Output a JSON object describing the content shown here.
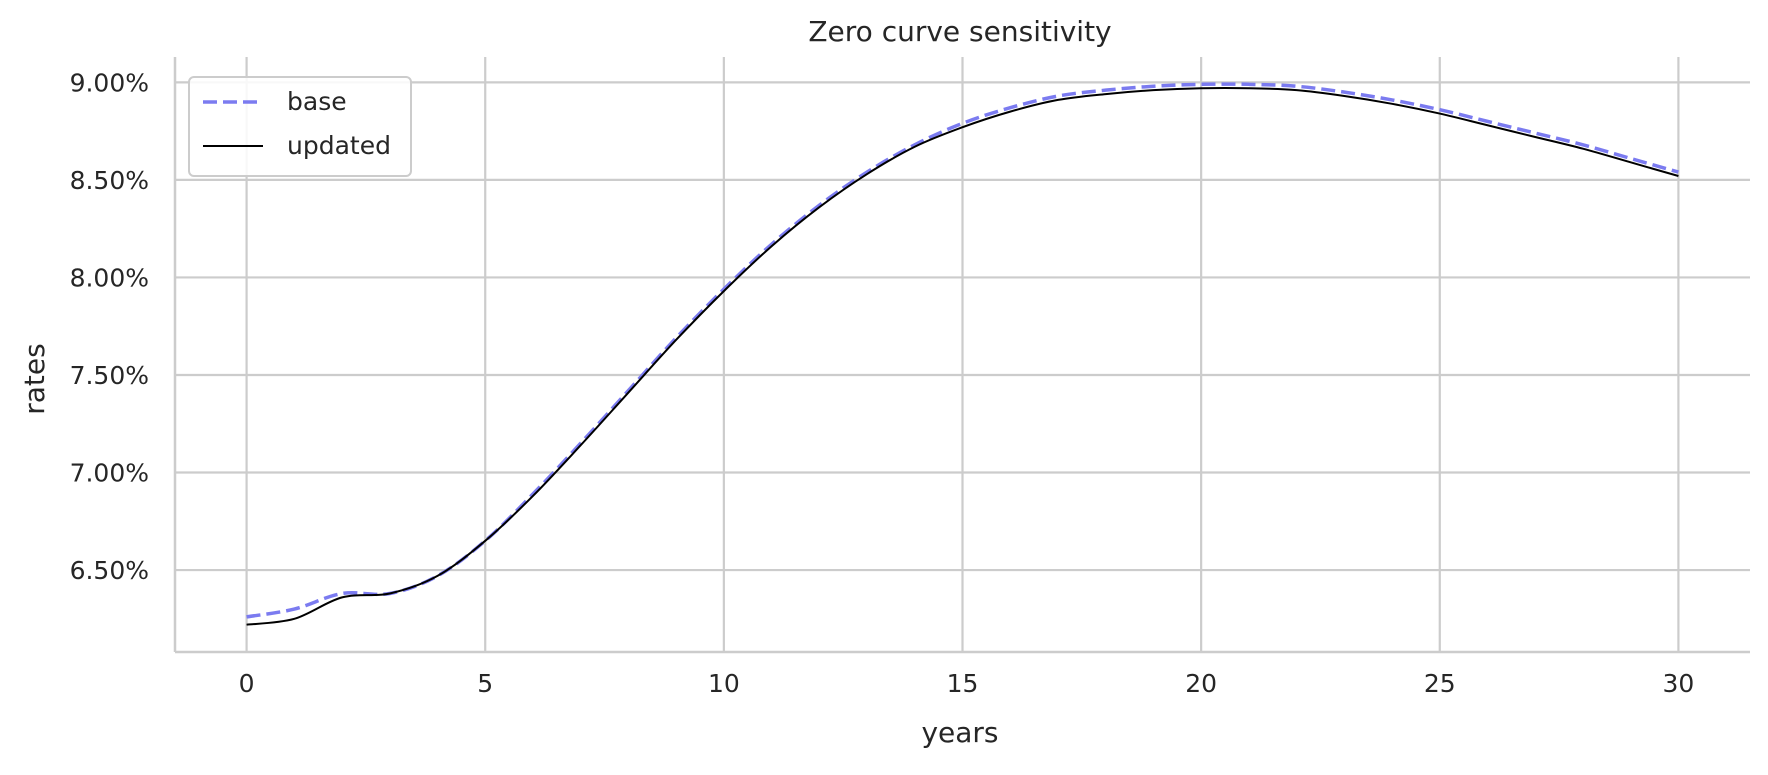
{
  "chart_data": {
    "type": "line",
    "title": "Zero curve sensitivity",
    "xlabel": "years",
    "ylabel": "rates",
    "xlim": [
      -1.5,
      31.5
    ],
    "ylim": [
      6.08,
      9.13
    ],
    "x_ticks": [
      0,
      5,
      10,
      15,
      20,
      25,
      30
    ],
    "y_ticks": [
      6.5,
      7.0,
      7.5,
      8.0,
      8.5,
      9.0
    ],
    "y_tick_labels": [
      "6.50%",
      "7.00%",
      "7.50%",
      "8.00%",
      "8.50%",
      "9.00%"
    ],
    "grid": true,
    "legend_position": "top-left",
    "x": [
      0,
      1,
      2,
      3,
      4,
      5,
      6,
      7,
      8,
      9,
      10,
      11,
      12,
      13,
      14,
      15,
      16,
      17,
      18,
      19,
      20,
      21,
      22,
      23,
      24,
      25,
      26,
      27,
      28,
      29,
      30
    ],
    "series": [
      {
        "name": "base",
        "color": "#7b7bf0",
        "dash": "dashed",
        "values": [
          6.26,
          6.3,
          6.38,
          6.38,
          6.47,
          6.65,
          6.89,
          7.15,
          7.42,
          7.69,
          7.94,
          8.17,
          8.37,
          8.54,
          8.68,
          8.79,
          8.87,
          8.93,
          8.96,
          8.98,
          8.99,
          8.99,
          8.98,
          8.95,
          8.91,
          8.86,
          8.8,
          8.74,
          8.68,
          8.61,
          8.54
        ]
      },
      {
        "name": "updated",
        "color": "#000000",
        "dash": "solid",
        "values": [
          6.22,
          6.25,
          6.36,
          6.38,
          6.47,
          6.65,
          6.88,
          7.14,
          7.41,
          7.68,
          7.93,
          8.16,
          8.36,
          8.53,
          8.67,
          8.77,
          8.85,
          8.91,
          8.94,
          8.96,
          8.97,
          8.97,
          8.96,
          8.93,
          8.89,
          8.84,
          8.78,
          8.72,
          8.66,
          8.59,
          8.52
        ]
      }
    ]
  }
}
